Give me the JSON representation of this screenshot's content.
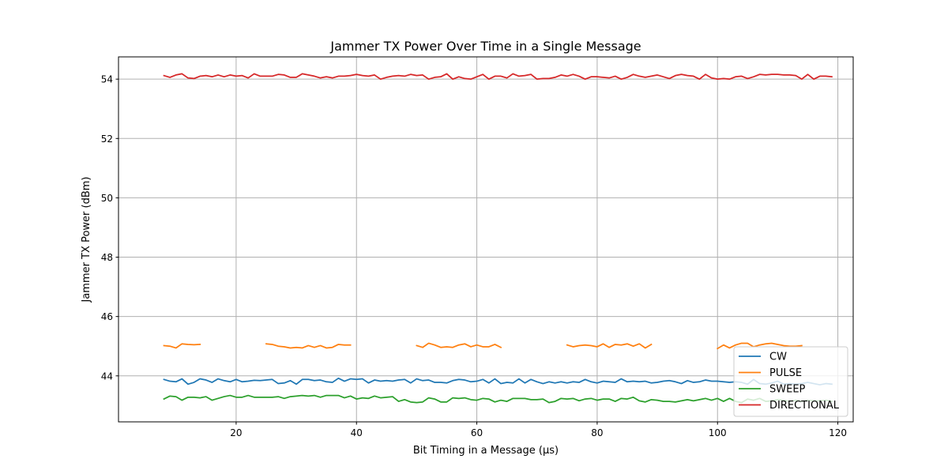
{
  "chart_data": {
    "type": "line",
    "title": "Jammer TX Power Over Time in a Single Message",
    "xlabel": "Bit Timing in a Message (µs)",
    "ylabel": "Jammer TX Power (dBm)",
    "xlim": [
      0.45,
      122.55
    ],
    "ylim": [
      42.45,
      54.75
    ],
    "xticks": [
      20,
      40,
      60,
      80,
      100,
      120
    ],
    "yticks": [
      44,
      46,
      48,
      50,
      52,
      54
    ],
    "grid": true,
    "legend": "lower-right",
    "series": [
      {
        "name": "CW",
        "color": "#1f77b4",
        "x": [
          8,
          9,
          10,
          11,
          12,
          13,
          14,
          15,
          16,
          17,
          18,
          19,
          20,
          21,
          22,
          23,
          24,
          25,
          26,
          27,
          28,
          29,
          30,
          31,
          32,
          33,
          34,
          35,
          36,
          37,
          38,
          39,
          40,
          41,
          42,
          43,
          44,
          45,
          46,
          47,
          48,
          49,
          50,
          51,
          52,
          53,
          54,
          55,
          56,
          57,
          58,
          59,
          60,
          61,
          62,
          63,
          64,
          65,
          66,
          67,
          68,
          69,
          70,
          71,
          72,
          73,
          74,
          75,
          76,
          77,
          78,
          79,
          80,
          81,
          82,
          83,
          84,
          85,
          86,
          87,
          88,
          89,
          90,
          91,
          92,
          93,
          94,
          95,
          96,
          97,
          98,
          99,
          100,
          101,
          102,
          103,
          104,
          105,
          106,
          107,
          108,
          109,
          110,
          111,
          112,
          113,
          114,
          115,
          116,
          117,
          118,
          119
        ],
        "y": [
          43.88,
          43.82,
          43.8,
          43.9,
          43.72,
          43.78,
          43.9,
          43.86,
          43.78,
          43.9,
          43.84,
          43.8,
          43.88,
          43.8,
          43.82,
          43.85,
          43.84,
          43.86,
          43.88,
          43.74,
          43.76,
          43.84,
          43.72,
          43.88,
          43.88,
          43.84,
          43.86,
          43.8,
          43.78,
          43.92,
          43.82,
          43.9,
          43.88,
          43.9,
          43.76,
          43.86,
          43.82,
          43.84,
          43.82,
          43.86,
          43.88,
          43.76,
          43.9,
          43.84,
          43.86,
          43.78,
          43.78,
          43.76,
          43.84,
          43.88,
          43.86,
          43.8,
          43.82,
          43.88,
          43.76,
          43.9,
          43.74,
          43.78,
          43.76,
          43.9,
          43.76,
          43.88,
          43.8,
          43.74,
          43.8,
          43.76,
          43.8,
          43.76,
          43.8,
          43.78,
          43.88,
          43.8,
          43.76,
          43.82,
          43.8,
          43.78,
          43.9,
          43.8,
          43.82,
          43.8,
          43.82,
          43.76,
          43.78,
          43.82,
          43.84,
          43.8,
          43.74,
          43.84,
          43.78,
          43.8,
          43.86,
          43.82,
          43.82,
          43.8,
          43.78,
          43.8,
          43.78,
          43.72,
          43.88,
          43.74,
          43.72,
          43.76,
          43.82,
          43.72,
          43.74,
          43.72,
          43.74,
          43.78,
          43.74,
          43.7,
          43.74,
          43.72
        ]
      },
      {
        "name": "PULSE",
        "color": "#ff7f0e",
        "segments": [
          {
            "x": [
              8,
              9,
              10,
              11,
              12,
              13,
              14
            ],
            "y": [
              45.02,
              45.0,
              44.94,
              45.08,
              45.06,
              45.05,
              45.06
            ]
          },
          {
            "x": [
              25,
              26,
              27,
              28,
              29,
              30,
              31,
              32,
              33,
              34,
              35,
              36,
              37,
              38,
              39
            ],
            "y": [
              45.08,
              45.06,
              45.0,
              44.98,
              44.94,
              44.96,
              44.94,
              45.02,
              44.96,
              45.02,
              44.94,
              44.96,
              45.06,
              45.04,
              45.04
            ]
          },
          {
            "x": [
              50,
              51,
              52,
              53,
              54,
              55,
              56,
              57,
              58,
              59,
              60,
              61,
              62,
              63,
              64
            ],
            "y": [
              45.02,
              44.96,
              45.1,
              45.04,
              44.96,
              44.98,
              44.96,
              45.04,
              45.08,
              44.98,
              45.04,
              44.98,
              44.98,
              45.06,
              44.96
            ]
          },
          {
            "x": [
              75,
              76,
              77,
              78,
              79,
              80,
              81,
              82,
              83,
              84,
              85,
              86,
              87,
              88,
              89
            ],
            "y": [
              45.04,
              44.98,
              45.02,
              45.04,
              45.02,
              44.98,
              45.08,
              44.96,
              45.06,
              45.04,
              45.08,
              45.0,
              45.08,
              44.94,
              45.06
            ]
          },
          {
            "x": [
              100,
              101,
              102,
              103,
              104,
              105,
              106,
              107,
              108,
              109,
              110,
              111,
              112,
              113,
              114
            ],
            "y": [
              44.92,
              45.04,
              44.94,
              45.04,
              45.1,
              45.1,
              44.98,
              45.04,
              45.08,
              45.1,
              45.06,
              45.02,
              45.0,
              45.0,
              45.02
            ]
          }
        ]
      },
      {
        "name": "SWEEP",
        "color": "#2ca02c",
        "x": [
          8,
          9,
          10,
          11,
          12,
          13,
          14,
          15,
          16,
          17,
          18,
          19,
          20,
          21,
          22,
          23,
          24,
          25,
          26,
          27,
          28,
          29,
          30,
          31,
          32,
          33,
          34,
          35,
          36,
          37,
          38,
          39,
          40,
          41,
          42,
          43,
          44,
          45,
          46,
          47,
          48,
          49,
          50,
          51,
          52,
          53,
          54,
          55,
          56,
          57,
          58,
          59,
          60,
          61,
          62,
          63,
          64,
          65,
          66,
          67,
          68,
          69,
          70,
          71,
          72,
          73,
          74,
          75,
          76,
          77,
          78,
          79,
          80,
          81,
          82,
          83,
          84,
          85,
          86,
          87,
          88,
          89,
          90,
          91,
          92,
          93,
          94,
          95,
          96,
          97,
          98,
          99,
          100,
          101,
          102,
          103,
          104,
          105,
          106,
          107,
          108,
          109,
          110,
          111,
          112,
          113,
          114,
          115,
          116,
          117,
          118,
          119
        ],
        "y": [
          43.22,
          43.32,
          43.3,
          43.18,
          43.28,
          43.28,
          43.26,
          43.3,
          43.18,
          43.24,
          43.3,
          43.34,
          43.28,
          43.28,
          43.34,
          43.28,
          43.28,
          43.28,
          43.28,
          43.3,
          43.24,
          43.3,
          43.32,
          43.34,
          43.32,
          43.34,
          43.28,
          43.34,
          43.34,
          43.34,
          43.26,
          43.32,
          43.22,
          43.26,
          43.24,
          43.32,
          43.26,
          43.28,
          43.3,
          43.14,
          43.2,
          43.12,
          43.1,
          43.12,
          43.26,
          43.22,
          43.12,
          43.12,
          43.26,
          43.24,
          43.26,
          43.2,
          43.18,
          43.24,
          43.22,
          43.12,
          43.18,
          43.14,
          43.24,
          43.24,
          43.24,
          43.2,
          43.2,
          43.22,
          43.1,
          43.14,
          43.24,
          43.22,
          43.24,
          43.16,
          43.22,
          43.24,
          43.18,
          43.22,
          43.22,
          43.14,
          43.24,
          43.22,
          43.28,
          43.16,
          43.12,
          43.2,
          43.18,
          43.14,
          43.14,
          43.12,
          43.16,
          43.2,
          43.16,
          43.2,
          43.24,
          43.18,
          43.24,
          43.14,
          43.24,
          43.14,
          43.1,
          43.22,
          43.18,
          43.24,
          43.14,
          43.16,
          43.2,
          43.18,
          43.14,
          43.18,
          43.14,
          43.18,
          43.16,
          43.16,
          43.18,
          43.14
        ]
      },
      {
        "name": "DIRECTIONAL",
        "color": "#d62728",
        "x": [
          8,
          9,
          10,
          11,
          12,
          13,
          14,
          15,
          16,
          17,
          18,
          19,
          20,
          21,
          22,
          23,
          24,
          25,
          26,
          27,
          28,
          29,
          30,
          31,
          32,
          33,
          34,
          35,
          36,
          37,
          38,
          39,
          40,
          41,
          42,
          43,
          44,
          45,
          46,
          47,
          48,
          49,
          50,
          51,
          52,
          53,
          54,
          55,
          56,
          57,
          58,
          59,
          60,
          61,
          62,
          63,
          64,
          65,
          66,
          67,
          68,
          69,
          70,
          71,
          72,
          73,
          74,
          75,
          76,
          77,
          78,
          79,
          80,
          81,
          82,
          83,
          84,
          85,
          86,
          87,
          88,
          89,
          90,
          91,
          92,
          93,
          94,
          95,
          96,
          97,
          98,
          99,
          100,
          101,
          102,
          103,
          104,
          105,
          106,
          107,
          108,
          109,
          110,
          111,
          112,
          113,
          114,
          115,
          116,
          117,
          118,
          119
        ],
        "y": [
          54.12,
          54.06,
          54.14,
          54.18,
          54.04,
          54.02,
          54.1,
          54.12,
          54.08,
          54.14,
          54.08,
          54.14,
          54.1,
          54.12,
          54.04,
          54.18,
          54.1,
          54.1,
          54.1,
          54.16,
          54.14,
          54.06,
          54.06,
          54.18,
          54.14,
          54.1,
          54.04,
          54.08,
          54.04,
          54.1,
          54.1,
          54.12,
          54.16,
          54.12,
          54.1,
          54.14,
          54.0,
          54.06,
          54.1,
          54.12,
          54.1,
          54.16,
          54.12,
          54.14,
          54.0,
          54.06,
          54.08,
          54.18,
          54.0,
          54.08,
          54.02,
          54.0,
          54.08,
          54.16,
          54.0,
          54.1,
          54.1,
          54.04,
          54.18,
          54.1,
          54.12,
          54.16,
          54.0,
          54.02,
          54.02,
          54.06,
          54.14,
          54.1,
          54.16,
          54.1,
          54.0,
          54.08,
          54.08,
          54.06,
          54.04,
          54.1,
          54.0,
          54.06,
          54.16,
          54.1,
          54.06,
          54.1,
          54.14,
          54.08,
          54.02,
          54.12,
          54.16,
          54.12,
          54.1,
          54.0,
          54.16,
          54.04,
          54.0,
          54.02,
          54.0,
          54.08,
          54.1,
          54.02,
          54.08,
          54.16,
          54.14,
          54.16,
          54.16,
          54.14,
          54.14,
          54.12,
          54.0,
          54.16,
          54.0,
          54.1,
          54.1,
          54.08
        ]
      }
    ]
  }
}
